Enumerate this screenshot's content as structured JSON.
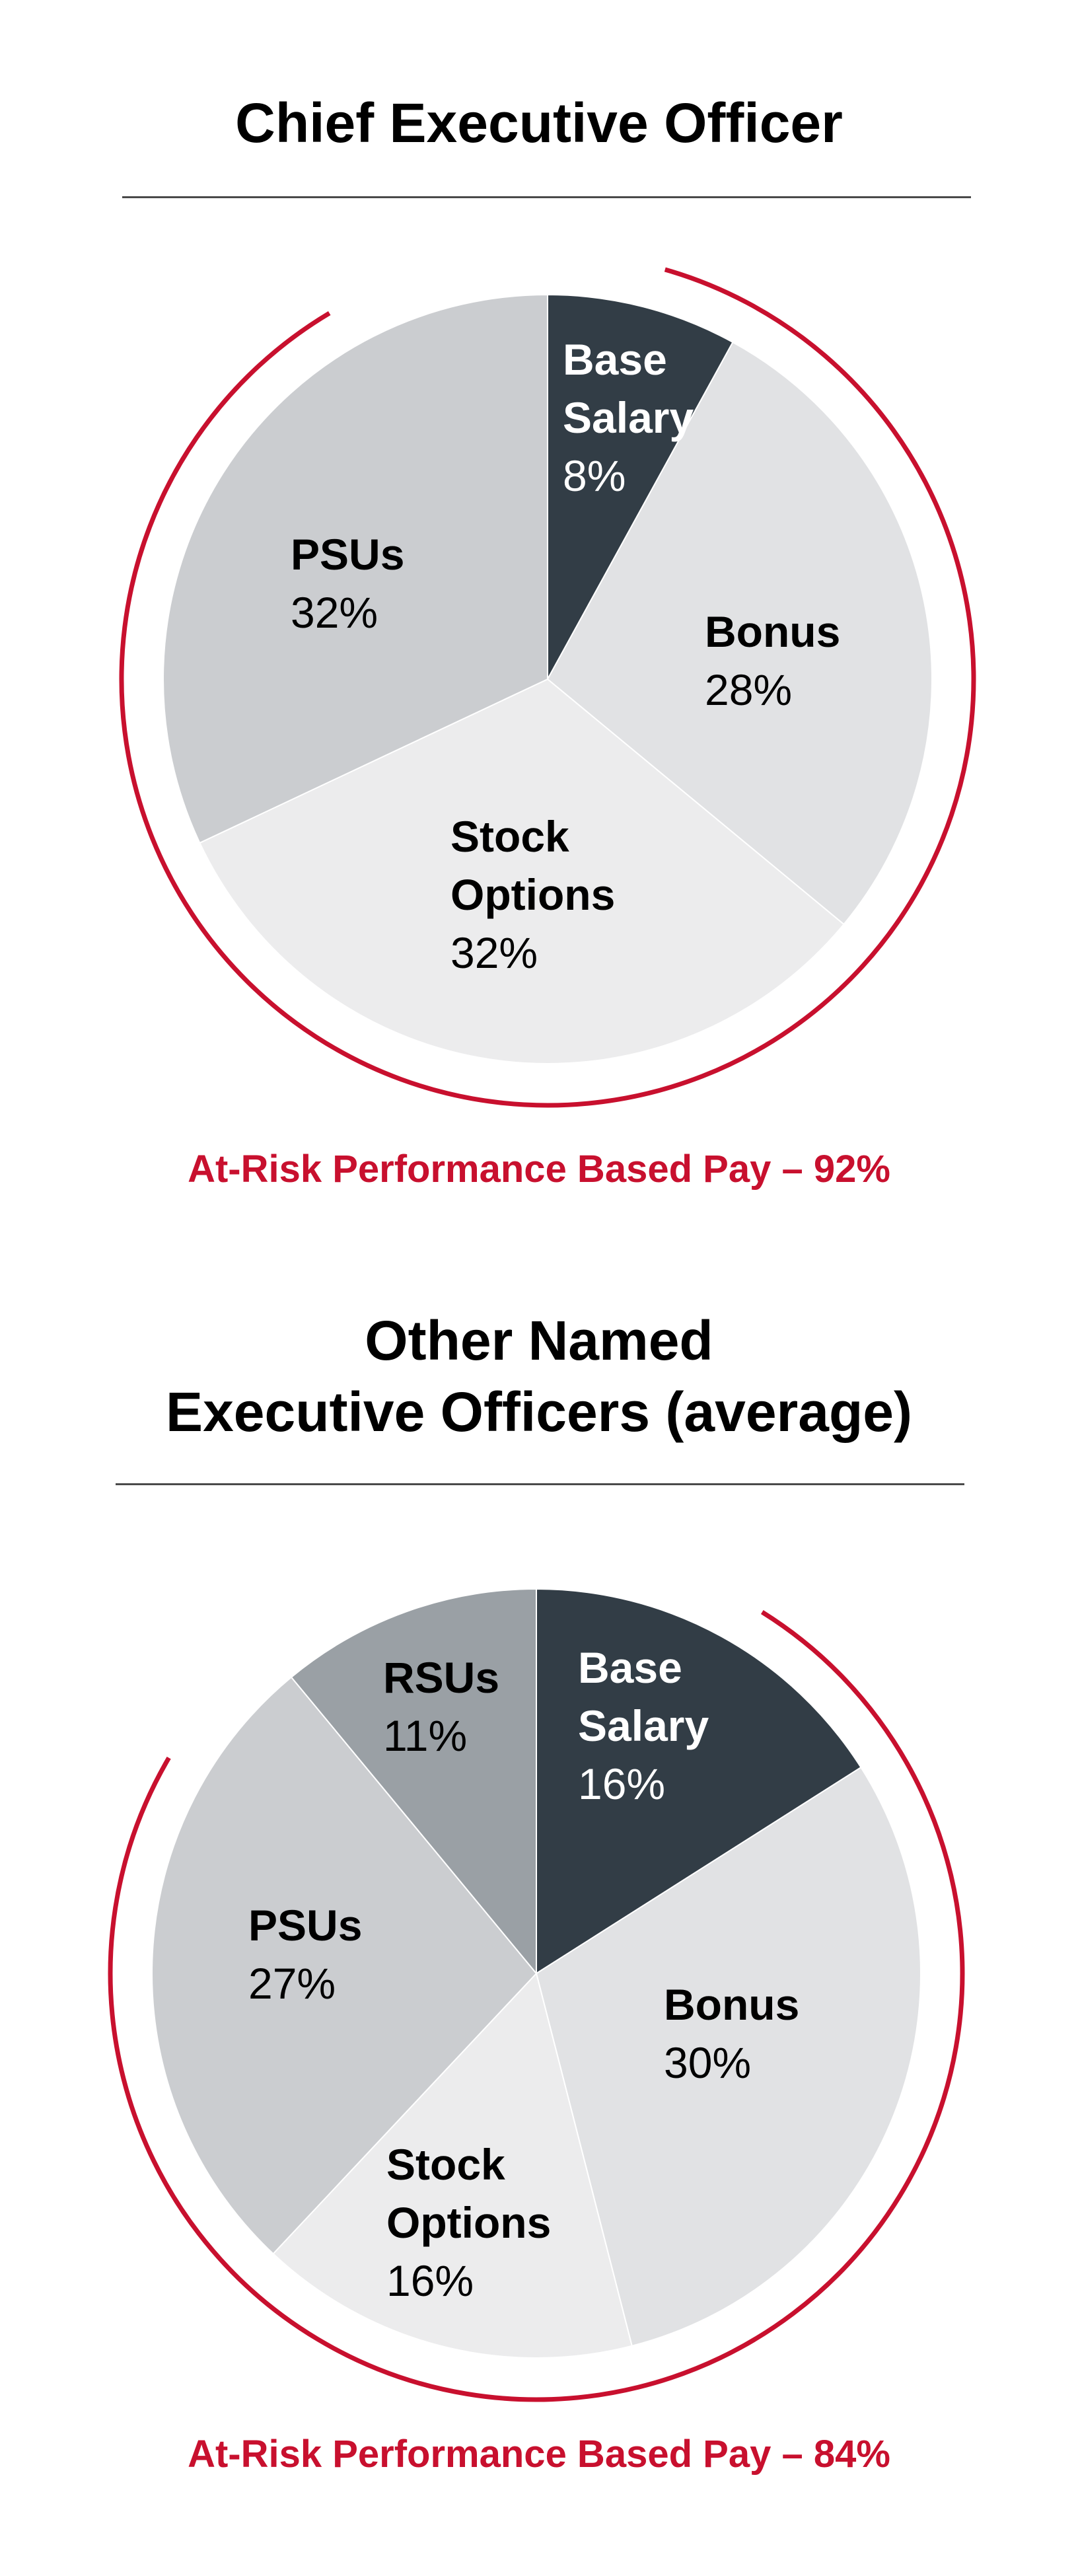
{
  "colors": {
    "accent_red": "#c8102e",
    "base_salary": "#323d46",
    "bonus": "#e1e2e4",
    "stock_options": "#ececed",
    "psus": "#cbcdd0",
    "rsus": "#9aa0a5",
    "rule": "#4a4a4a"
  },
  "chart_data": [
    {
      "type": "pie",
      "title": "Chief Executive Officer",
      "slices": [
        {
          "name": "Base Salary",
          "value": 8,
          "label": "8%",
          "color_key": "base_salary"
        },
        {
          "name": "Bonus",
          "value": 28,
          "label": "28%",
          "color_key": "bonus"
        },
        {
          "name": "Stock Options",
          "value": 32,
          "label": "32%",
          "color_key": "stock_options"
        },
        {
          "name": "PSUs",
          "value": 32,
          "label": "32%",
          "color_key": "psus"
        }
      ],
      "at_risk_label": "At-Risk Performance Based Pay – 92%",
      "at_risk_value": 92
    },
    {
      "type": "pie",
      "title": "Other Named\nExecutive Officers (average)",
      "slices": [
        {
          "name": "Base Salary",
          "value": 16,
          "label": "16%",
          "color_key": "base_salary"
        },
        {
          "name": "Bonus",
          "value": 30,
          "label": "30%",
          "color_key": "bonus"
        },
        {
          "name": "Stock Options",
          "value": 16,
          "label": "16%",
          "color_key": "stock_options"
        },
        {
          "name": "PSUs",
          "value": 27,
          "label": "27%",
          "color_key": "psus"
        },
        {
          "name": "RSUs",
          "value": 11,
          "label": "11%",
          "color_key": "rsus"
        }
      ],
      "at_risk_label": "At-Risk Performance Based Pay – 84%",
      "at_risk_value": 84
    }
  ]
}
